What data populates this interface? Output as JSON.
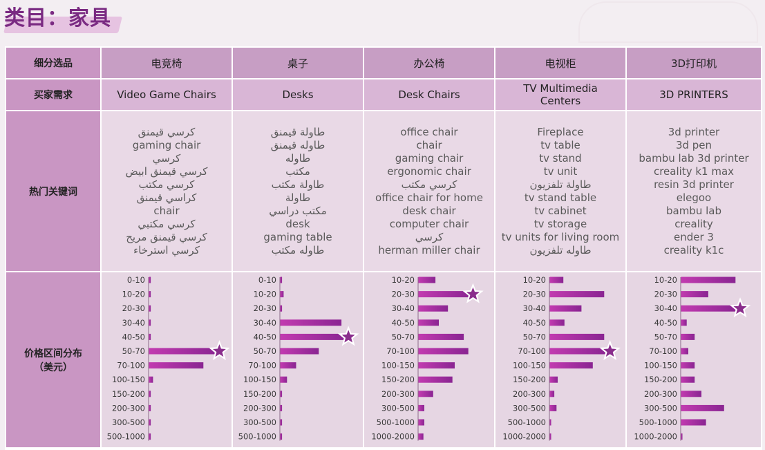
{
  "page_title": "类目：家具",
  "row_labels": {
    "segment": "细分选品",
    "demand": "买家需求",
    "keywords": "热门关键词",
    "price_line1": "价格区间分布",
    "price_line2": "（美元）"
  },
  "columns": [
    {
      "name": "电竞椅",
      "demand": "Video Game Chairs",
      "keywords": [
        "كرسي قيمنق",
        "gaming chair",
        "كرسي",
        "كرسي قيمنق ابيض",
        "كرسي مكتب",
        "كراسي قيمنق",
        "chair",
        "كرسي مكتبي",
        "كرسي قيمنق مريح",
        "كرسي استرخاء"
      ]
    },
    {
      "name": "桌子",
      "demand": "Desks",
      "keywords": [
        "طاولة قيمنق",
        "طاوله قيمنق",
        "طاوله",
        "مكتب",
        "طاولة مكتب",
        "طاولة",
        "مكتب دراسي",
        "desk",
        "gaming table",
        "طاوله مكتب"
      ]
    },
    {
      "name": "办公椅",
      "demand": "Desk Chairs",
      "keywords": [
        "office chair",
        "chair",
        "gaming chair",
        "ergonomic chair",
        "كرسي مكتب",
        "office chair for home",
        "desk chair",
        "computer chair",
        "كرسي",
        "herman miller chair"
      ]
    },
    {
      "name": "电视柜",
      "demand_line1": "TV Multimedia",
      "demand_line2": "Centers",
      "keywords": [
        "Fireplace",
        "tv table",
        "tv stand",
        "tv unit",
        "طاولة تلفزيون",
        "tv stand table",
        "tv cabinet",
        "tv storage",
        "tv units for living room",
        "طاوله تلفزيون"
      ]
    },
    {
      "name": "3D打印机",
      "demand": "3D PRINTERS",
      "keywords": [
        "3d printer",
        "3d pen",
        "bambu lab 3d printer",
        "creality k1 max",
        "resin 3d printer",
        "elegoo",
        "bambu lab",
        "creality",
        "ender 3",
        "creality k1c"
      ]
    }
  ],
  "chart_data": [
    {
      "type": "bar",
      "orientation": "horizontal",
      "categories": [
        "0-10",
        "10-20",
        "20-30",
        "30-40",
        "40-50",
        "50-70",
        "70-100",
        "100-150",
        "150-200",
        "200-300",
        "300-500",
        "500-1000"
      ],
      "values": [
        0.8,
        0.8,
        0.8,
        0.8,
        0.8,
        30,
        24,
        1.8,
        0.8,
        0.8,
        0.8,
        0.8
      ],
      "highlight": "50-70"
    },
    {
      "type": "bar",
      "orientation": "horizontal",
      "categories": [
        "0-10",
        "10-20",
        "20-30",
        "30-40",
        "40-50",
        "50-70",
        "70-100",
        "100-150",
        "150-200",
        "200-300",
        "300-500",
        "500-1000"
      ],
      "values": [
        0.8,
        1.5,
        0.8,
        27,
        29,
        17,
        7,
        3,
        0.8,
        0.8,
        0.8,
        0.8
      ],
      "highlight": "40-50"
    },
    {
      "type": "bar",
      "orientation": "horizontal",
      "categories": [
        "10-20",
        "20-30",
        "30-40",
        "40-50",
        "50-70",
        "70-100",
        "100-150",
        "150-200",
        "200-300",
        "300-500",
        "500-1000",
        "1000-2000"
      ],
      "values": [
        7.5,
        23,
        13,
        9,
        20,
        22,
        16,
        15,
        6.5,
        2.6,
        2.6,
        2.2
      ],
      "highlight": "20-30"
    },
    {
      "type": "bar",
      "orientation": "horizontal",
      "categories": [
        "10-20",
        "20-30",
        "30-40",
        "40-50",
        "50-70",
        "70-100",
        "100-150",
        "150-200",
        "200-300",
        "300-500",
        "500-1000",
        "1000-2000"
      ],
      "values": [
        6,
        24,
        14,
        6.5,
        24,
        25.5,
        19,
        3.5,
        2,
        3,
        0.5,
        0.5
      ],
      "highlight": "70-100"
    },
    {
      "type": "bar",
      "orientation": "horizontal",
      "categories": [
        "10-20",
        "20-30",
        "30-40",
        "40-50",
        "50-70",
        "70-100",
        "100-150",
        "150-200",
        "200-300",
        "300-500",
        "500-1000",
        "1000-2000"
      ],
      "values": [
        24,
        12,
        25,
        2.5,
        6,
        3.2,
        6,
        6,
        9,
        19,
        11,
        0.6
      ],
      "highlight": "30-40"
    }
  ],
  "colors": {
    "title": "#7a2a82",
    "bar_start": "#c23bb0",
    "bar_end": "#8a2592",
    "star": "#8a2d8c"
  }
}
